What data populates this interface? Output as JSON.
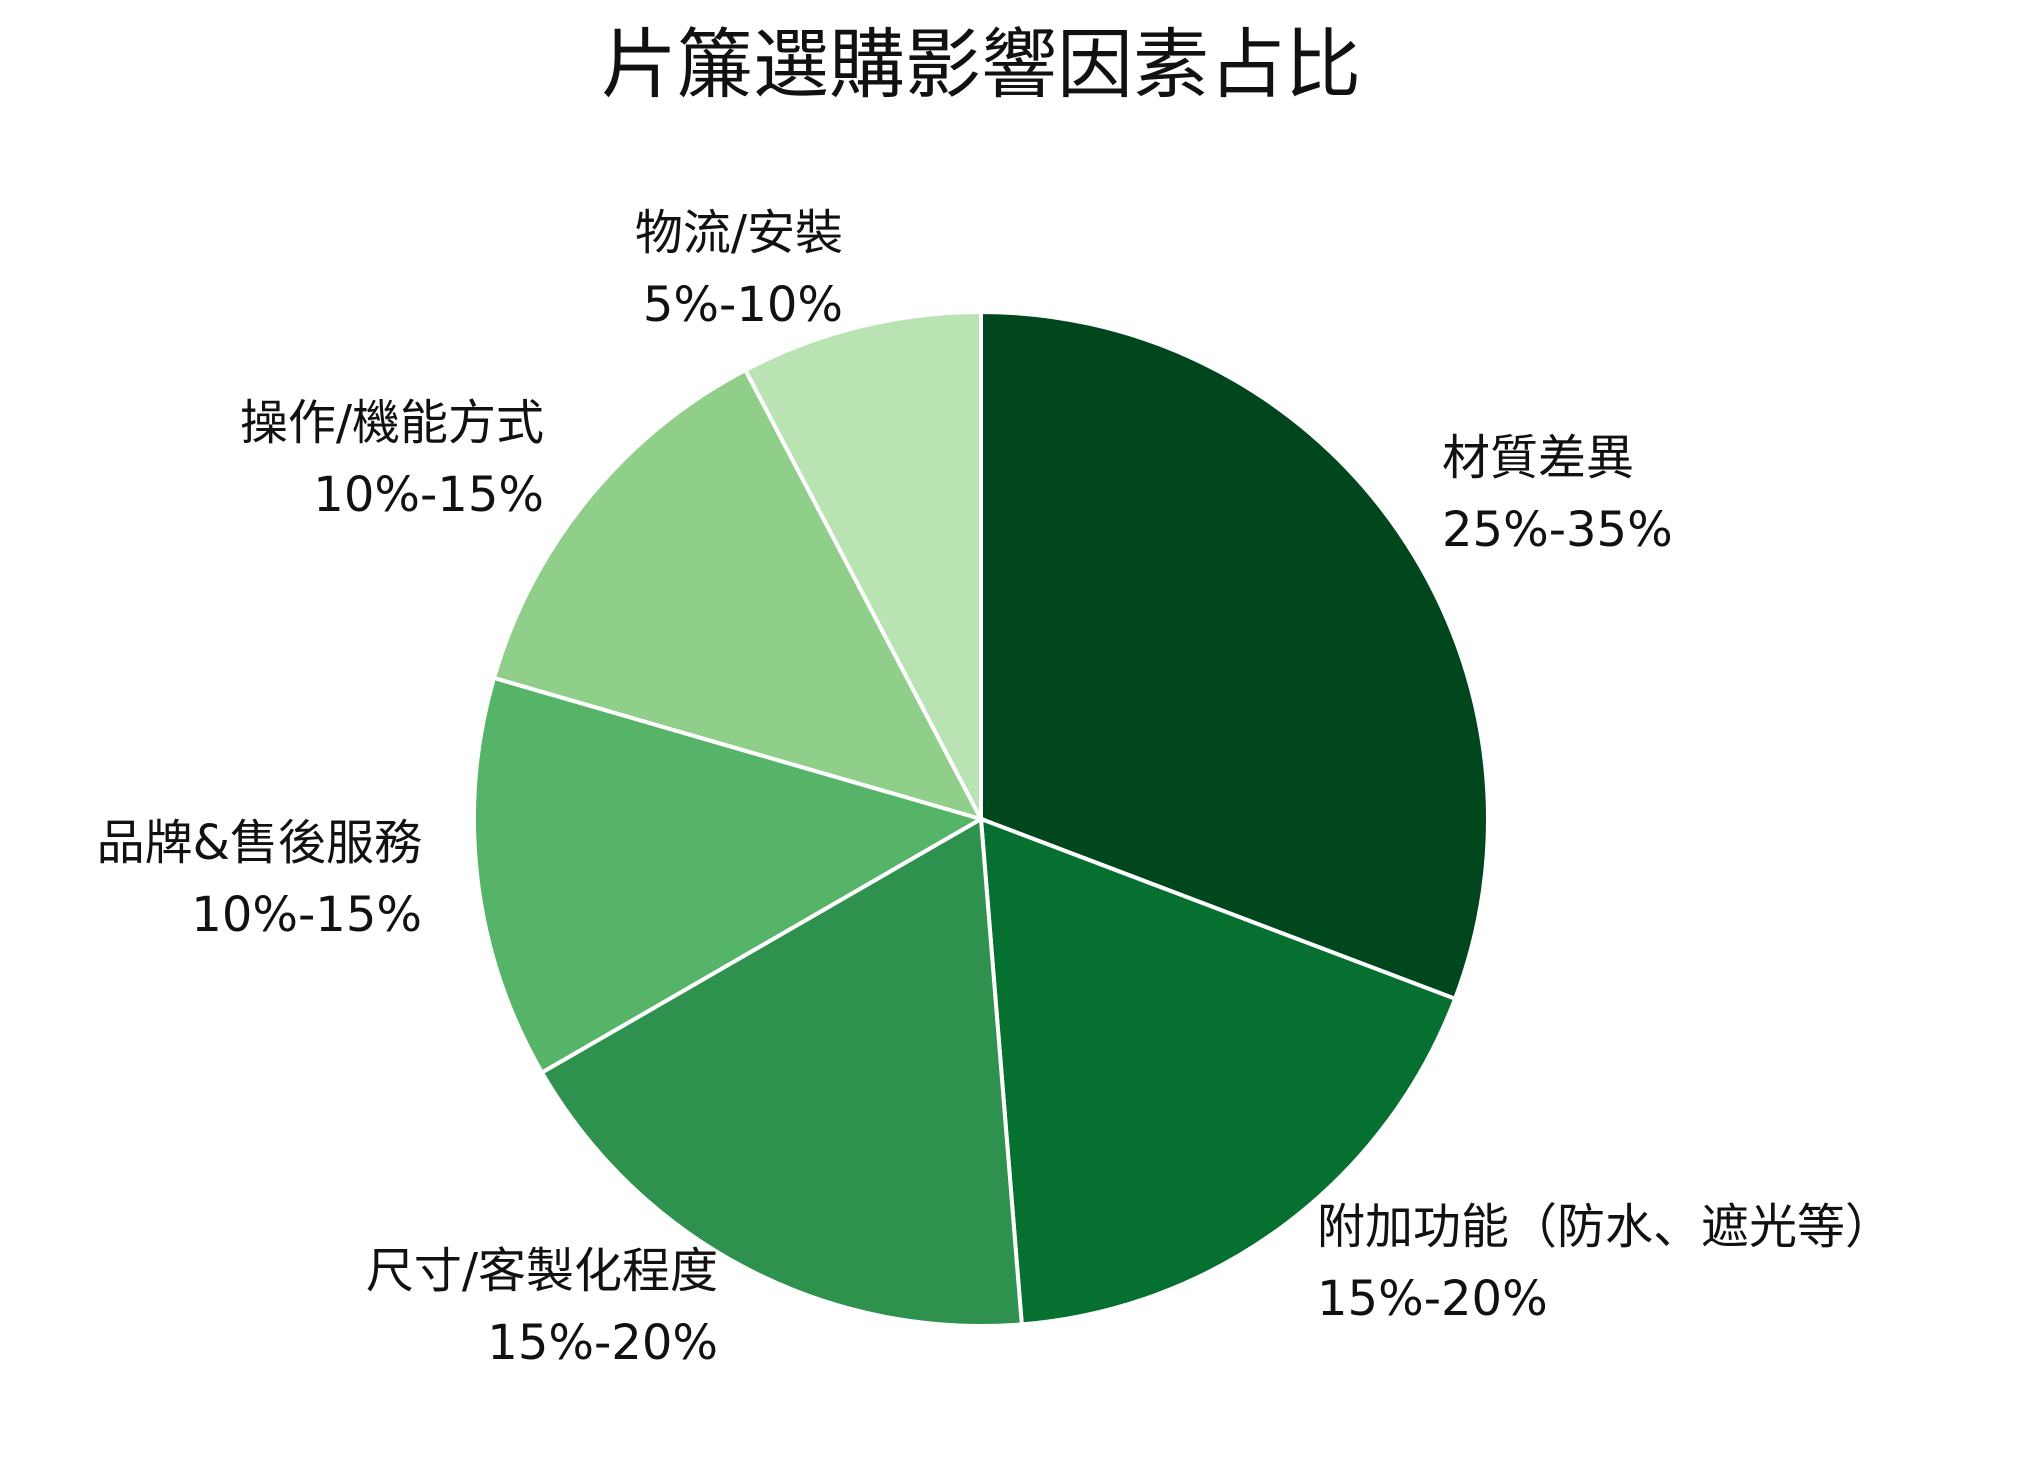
{
  "chart_data": {
    "type": "pie",
    "title": "片簾選購影響因素占比",
    "categories": [
      "材質差異",
      "附加功能（防水、遮光等）",
      "尺寸/客製化程度",
      "品牌&售後服務",
      "操作/機能方式",
      "物流/安裝"
    ],
    "values": [
      30,
      17.5,
      17.5,
      12.5,
      12.5,
      7.5
    ],
    "value_labels": [
      "25%-35%",
      "15%-20%",
      "15%-20%",
      "10%-15%",
      "10%-15%",
      "5%-10%"
    ],
    "colors": [
      "#00471d",
      "#067030",
      "#2e914d",
      "#56b468",
      "#8fcf8a",
      "#b9e3b2"
    ]
  }
}
